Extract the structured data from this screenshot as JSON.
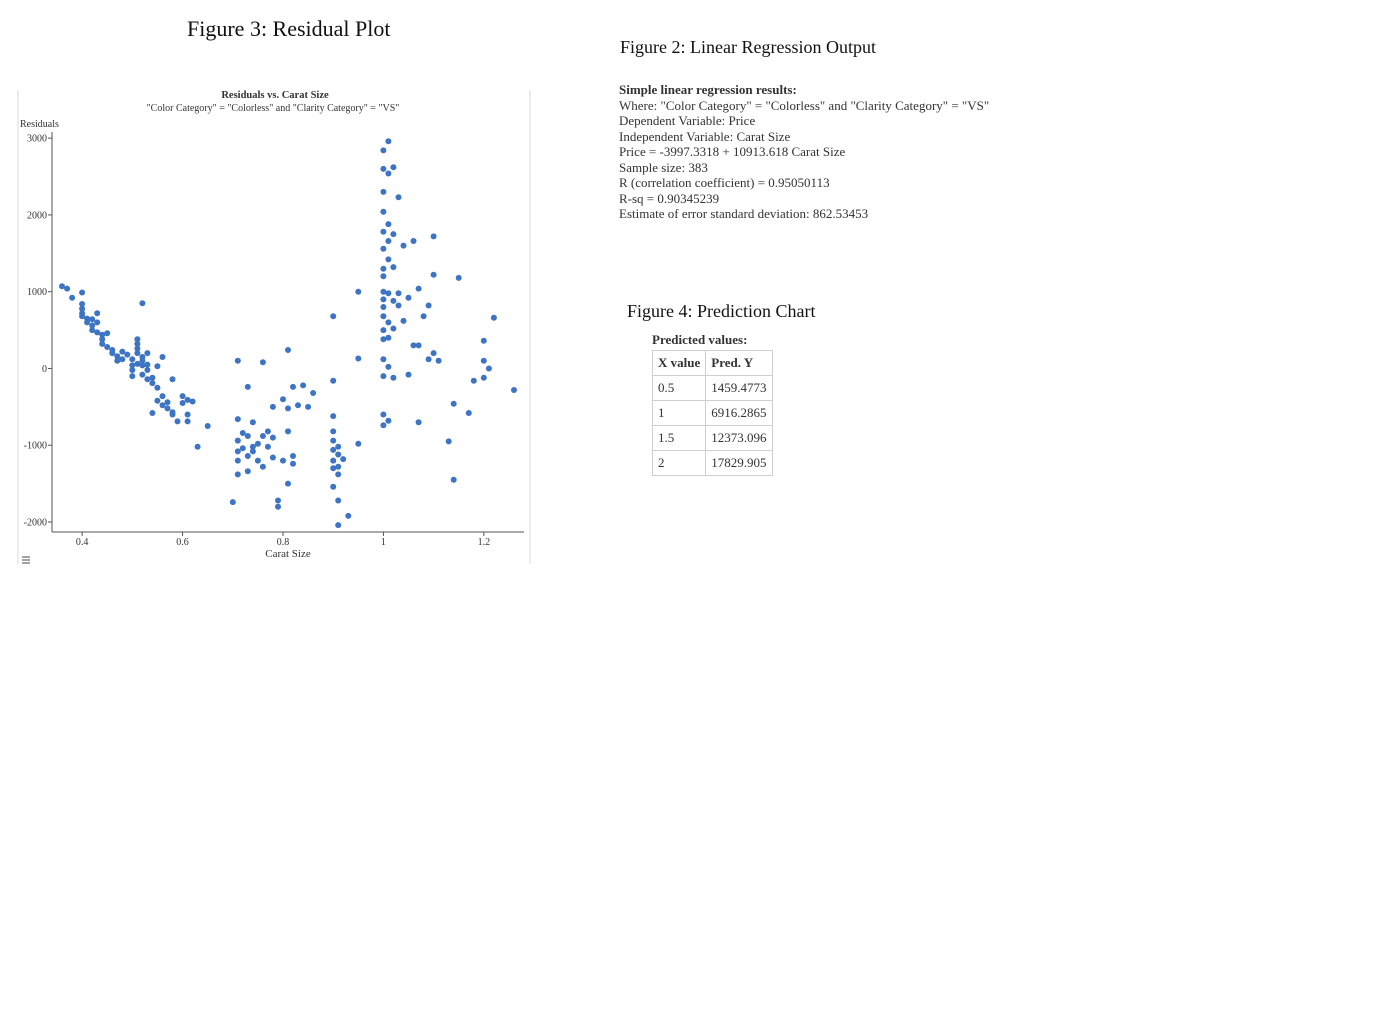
{
  "figures": {
    "residual_title": "Figure 3: Residual Plot",
    "regression_title": "Figure 2: Linear Regression Output",
    "prediction_title": "Figure 4: Prediction Chart"
  },
  "regression": {
    "heading": "Simple linear regression results:",
    "lines": [
      "Where: \"Color Category\" = \"Colorless\" and \"Clarity Category\" = \"VS\"",
      "Dependent Variable: Price",
      "Independent Variable: Carat Size",
      "Price = -3997.3318 + 10913.618 Carat Size",
      "Sample size: 383",
      "R (correlation coefficient) = 0.95050113",
      "R-sq = 0.90345239",
      "Estimate of error standard deviation: 862.53453"
    ]
  },
  "prediction": {
    "heading": "Predicted values:",
    "columns": [
      "X value",
      "Pred. Y"
    ],
    "rows": [
      [
        "0.5",
        "1459.4773"
      ],
      [
        "1",
        "6916.2865"
      ],
      [
        "1.5",
        "12373.096"
      ],
      [
        "2",
        "17829.905"
      ]
    ]
  },
  "menu_icon": "hamburger-menu-icon",
  "chart_data": {
    "type": "scatter",
    "title": "Residuals vs. Carat Size",
    "subtitle": "\"Color Category\" = \"Colorless\" and \"Clarity Category\" = \"VS\"",
    "xlabel": "Carat Size",
    "ylabel": "Residuals",
    "xlim": [
      0.34,
      1.28
    ],
    "ylim": [
      -2130,
      3080
    ],
    "x_ticks": [
      0.4,
      0.6,
      0.8,
      1,
      1.2
    ],
    "x_tick_labels": [
      "0.4",
      "0.6",
      "0.8",
      "1",
      "1.2"
    ],
    "y_ticks": [
      -2000,
      -1000,
      0,
      1000,
      2000,
      3000
    ],
    "y_tick_labels": [
      "-2000",
      "-1000",
      "0",
      "1000",
      "2000",
      "3000"
    ],
    "marker_color": "#3d74c4",
    "grid": false,
    "points": [
      [
        0.36,
        1070
      ],
      [
        0.37,
        1040
      ],
      [
        0.38,
        920
      ],
      [
        0.4,
        990
      ],
      [
        0.4,
        840
      ],
      [
        0.4,
        780
      ],
      [
        0.4,
        720
      ],
      [
        0.4,
        680
      ],
      [
        0.41,
        650
      ],
      [
        0.41,
        600
      ],
      [
        0.42,
        640
      ],
      [
        0.42,
        560
      ],
      [
        0.42,
        500
      ],
      [
        0.43,
        720
      ],
      [
        0.43,
        470
      ],
      [
        0.43,
        600
      ],
      [
        0.44,
        440
      ],
      [
        0.44,
        380
      ],
      [
        0.44,
        320
      ],
      [
        0.45,
        280
      ],
      [
        0.45,
        460
      ],
      [
        0.46,
        240
      ],
      [
        0.46,
        200
      ],
      [
        0.47,
        160
      ],
      [
        0.47,
        100
      ],
      [
        0.48,
        220
      ],
      [
        0.48,
        120
      ],
      [
        0.49,
        180
      ],
      [
        0.5,
        40
      ],
      [
        0.5,
        -20
      ],
      [
        0.5,
        -100
      ],
      [
        0.5,
        120
      ],
      [
        0.51,
        260
      ],
      [
        0.51,
        60
      ],
      [
        0.51,
        320
      ],
      [
        0.51,
        380
      ],
      [
        0.51,
        200
      ],
      [
        0.52,
        -80
      ],
      [
        0.52,
        40
      ],
      [
        0.52,
        100
      ],
      [
        0.52,
        150
      ],
      [
        0.53,
        -20
      ],
      [
        0.53,
        50
      ],
      [
        0.53,
        200
      ],
      [
        0.52,
        850
      ],
      [
        0.53,
        -140
      ],
      [
        0.54,
        -190
      ],
      [
        0.54,
        -120
      ],
      [
        0.55,
        30
      ],
      [
        0.55,
        -250
      ],
      [
        0.55,
        -420
      ],
      [
        0.56,
        -360
      ],
      [
        0.56,
        -480
      ],
      [
        0.57,
        -520
      ],
      [
        0.57,
        -440
      ],
      [
        0.56,
        150
      ],
      [
        0.58,
        -570
      ],
      [
        0.58,
        -600
      ],
      [
        0.54,
        -580
      ],
      [
        0.59,
        -690
      ],
      [
        0.58,
        -140
      ],
      [
        0.6,
        -360
      ],
      [
        0.6,
        -450
      ],
      [
        0.61,
        -410
      ],
      [
        0.61,
        -600
      ],
      [
        0.61,
        -690
      ],
      [
        0.62,
        -430
      ],
      [
        0.63,
        -1020
      ],
      [
        0.65,
        -750
      ],
      [
        0.7,
        -1740
      ],
      [
        0.71,
        -1380
      ],
      [
        0.71,
        -1080
      ],
      [
        0.71,
        -940
      ],
      [
        0.71,
        -660
      ],
      [
        0.71,
        -1200
      ],
      [
        0.72,
        -840
      ],
      [
        0.72,
        -1040
      ],
      [
        0.73,
        -1140
      ],
      [
        0.73,
        -880
      ],
      [
        0.73,
        -1340
      ],
      [
        0.74,
        -700
      ],
      [
        0.74,
        -1020
      ],
      [
        0.74,
        -1080
      ],
      [
        0.75,
        -980
      ],
      [
        0.75,
        -1200
      ],
      [
        0.76,
        -880
      ],
      [
        0.76,
        -1280
      ],
      [
        0.77,
        -820
      ],
      [
        0.77,
        -1020
      ],
      [
        0.78,
        -1160
      ],
      [
        0.78,
        -900
      ],
      [
        0.79,
        -1720
      ],
      [
        0.79,
        -1800
      ],
      [
        0.8,
        -1200
      ],
      [
        0.81,
        -1500
      ],
      [
        0.81,
        -820
      ],
      [
        0.82,
        -1240
      ],
      [
        0.82,
        -1140
      ],
      [
        0.8,
        -400
      ],
      [
        0.81,
        -520
      ],
      [
        0.82,
        -240
      ],
      [
        0.83,
        -480
      ],
      [
        0.84,
        -220
      ],
      [
        0.85,
        -500
      ],
      [
        0.86,
        -320
      ],
      [
        0.78,
        -500
      ],
      [
        0.73,
        -240
      ],
      [
        0.71,
        100
      ],
      [
        0.76,
        80
      ],
      [
        0.81,
        240
      ],
      [
        0.9,
        -160
      ],
      [
        0.9,
        -620
      ],
      [
        0.9,
        -820
      ],
      [
        0.9,
        -940
      ],
      [
        0.9,
        -1060
      ],
      [
        0.9,
        -1200
      ],
      [
        0.9,
        -1300
      ],
      [
        0.91,
        -1020
      ],
      [
        0.91,
        -1120
      ],
      [
        0.91,
        -1280
      ],
      [
        0.91,
        -1380
      ],
      [
        0.92,
        -1180
      ],
      [
        0.91,
        -1720
      ],
      [
        0.9,
        -1540
      ],
      [
        0.93,
        -1920
      ],
      [
        0.91,
        -2040
      ],
      [
        0.95,
        -980
      ],
      [
        0.95,
        130
      ],
      [
        0.95,
        1000
      ],
      [
        0.9,
        680
      ],
      [
        1.0,
        2840
      ],
      [
        1.0,
        2600
      ],
      [
        1.0,
        2300
      ],
      [
        1.0,
        2040
      ],
      [
        1.0,
        1780
      ],
      [
        1.0,
        1560
      ],
      [
        1.0,
        1300
      ],
      [
        1.0,
        1200
      ],
      [
        1.0,
        1000
      ],
      [
        1.0,
        900
      ],
      [
        1.0,
        800
      ],
      [
        1.0,
        680
      ],
      [
        1.0,
        500
      ],
      [
        1.0,
        380
      ],
      [
        1.0,
        120
      ],
      [
        1.0,
        -100
      ],
      [
        1.0,
        -600
      ],
      [
        1.0,
        -740
      ],
      [
        1.01,
        2960
      ],
      [
        1.01,
        2540
      ],
      [
        1.01,
        1880
      ],
      [
        1.01,
        1660
      ],
      [
        1.01,
        1420
      ],
      [
        1.01,
        980
      ],
      [
        1.01,
        600
      ],
      [
        1.01,
        400
      ],
      [
        1.01,
        20
      ],
      [
        1.01,
        -680
      ],
      [
        1.02,
        2620
      ],
      [
        1.02,
        1750
      ],
      [
        1.02,
        1320
      ],
      [
        1.02,
        880
      ],
      [
        1.02,
        520
      ],
      [
        1.02,
        -120
      ],
      [
        1.03,
        2230
      ],
      [
        1.03,
        980
      ],
      [
        1.03,
        820
      ],
      [
        1.04,
        1600
      ],
      [
        1.04,
        620
      ],
      [
        1.05,
        920
      ],
      [
        1.05,
        -80
      ],
      [
        1.06,
        1660
      ],
      [
        1.06,
        300
      ],
      [
        1.07,
        300
      ],
      [
        1.07,
        1040
      ],
      [
        1.08,
        680
      ],
      [
        1.09,
        820
      ],
      [
        1.09,
        120
      ],
      [
        1.1,
        1720
      ],
      [
        1.1,
        200
      ],
      [
        1.1,
        1220
      ],
      [
        1.11,
        100
      ],
      [
        1.07,
        -700
      ],
      [
        1.13,
        -950
      ],
      [
        1.14,
        -1450
      ],
      [
        1.14,
        -460
      ],
      [
        1.15,
        1180
      ],
      [
        1.17,
        -580
      ],
      [
        1.18,
        -160
      ],
      [
        1.2,
        360
      ],
      [
        1.2,
        100
      ],
      [
        1.2,
        -120
      ],
      [
        1.21,
        0
      ],
      [
        1.22,
        660
      ],
      [
        1.26,
        -280
      ]
    ]
  }
}
